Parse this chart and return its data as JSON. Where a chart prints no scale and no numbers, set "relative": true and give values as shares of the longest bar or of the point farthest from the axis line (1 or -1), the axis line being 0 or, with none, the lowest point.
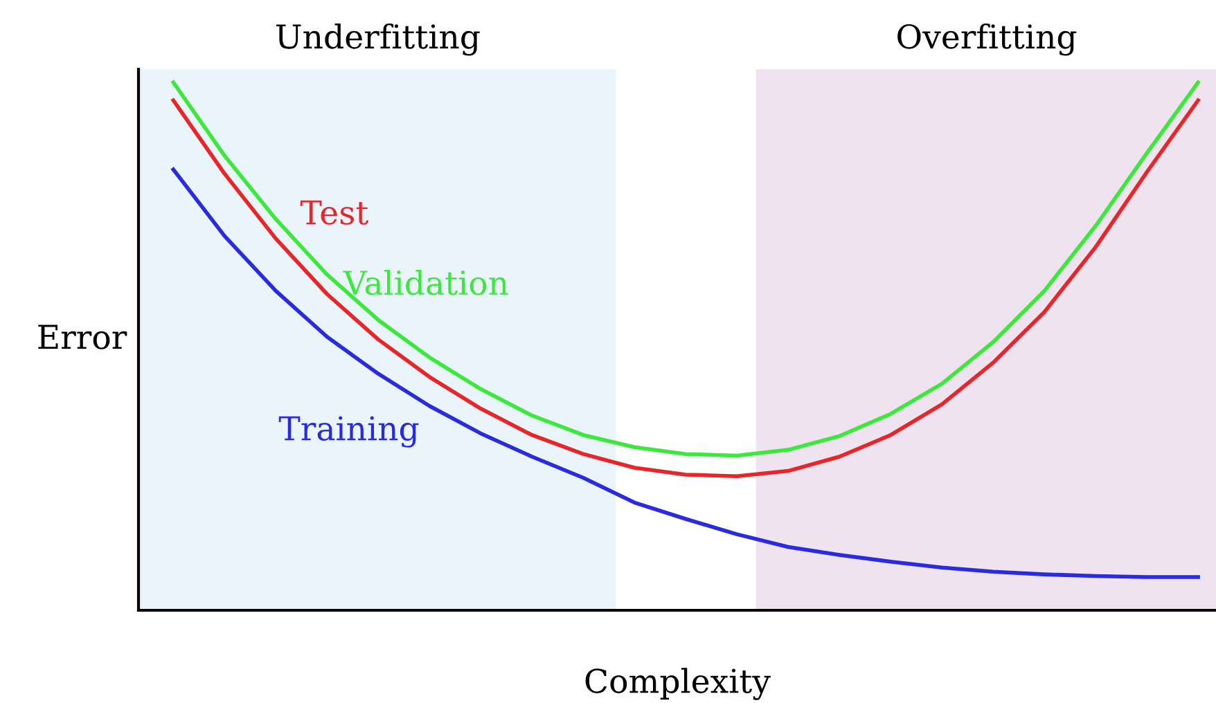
{
  "chart_data": {
    "type": "line",
    "relative": true,
    "xlabel": "Complexity",
    "ylabel": "Error",
    "legend": false,
    "categories": [
      null,
      null,
      null,
      null,
      null,
      null,
      null,
      null,
      null,
      null,
      null,
      null,
      null,
      null,
      null,
      null,
      null,
      null,
      null,
      null,
      null
    ],
    "series": [
      {
        "name": "Training",
        "color": "#2a2ae0",
        "values": [
          0.835,
          0.709,
          0.605,
          0.518,
          0.448,
          0.387,
          0.335,
          0.291,
          0.251,
          0.204,
          0.173,
          0.144,
          0.12,
          0.105,
          0.092,
          0.081,
          0.073,
          0.068,
          0.065,
          0.063,
          0.063
        ]
      },
      {
        "name": "Test",
        "color": "#e8262a",
        "values": [
          0.966,
          0.827,
          0.704,
          0.599,
          0.513,
          0.442,
          0.382,
          0.332,
          0.296,
          0.27,
          0.257,
          0.254,
          0.264,
          0.291,
          0.332,
          0.39,
          0.469,
          0.565,
          0.688,
          0.83,
          0.966
        ]
      },
      {
        "name": "Validation",
        "color": "#3ce83c",
        "values": [
          1.0,
          0.861,
          0.741,
          0.636,
          0.55,
          0.479,
          0.419,
          0.369,
          0.332,
          0.309,
          0.296,
          0.293,
          0.304,
          0.33,
          0.372,
          0.429,
          0.508,
          0.605,
          0.728,
          0.866,
          1.0
        ]
      }
    ],
    "annotations": [
      "Underfitting",
      "Overfitting"
    ]
  }
}
